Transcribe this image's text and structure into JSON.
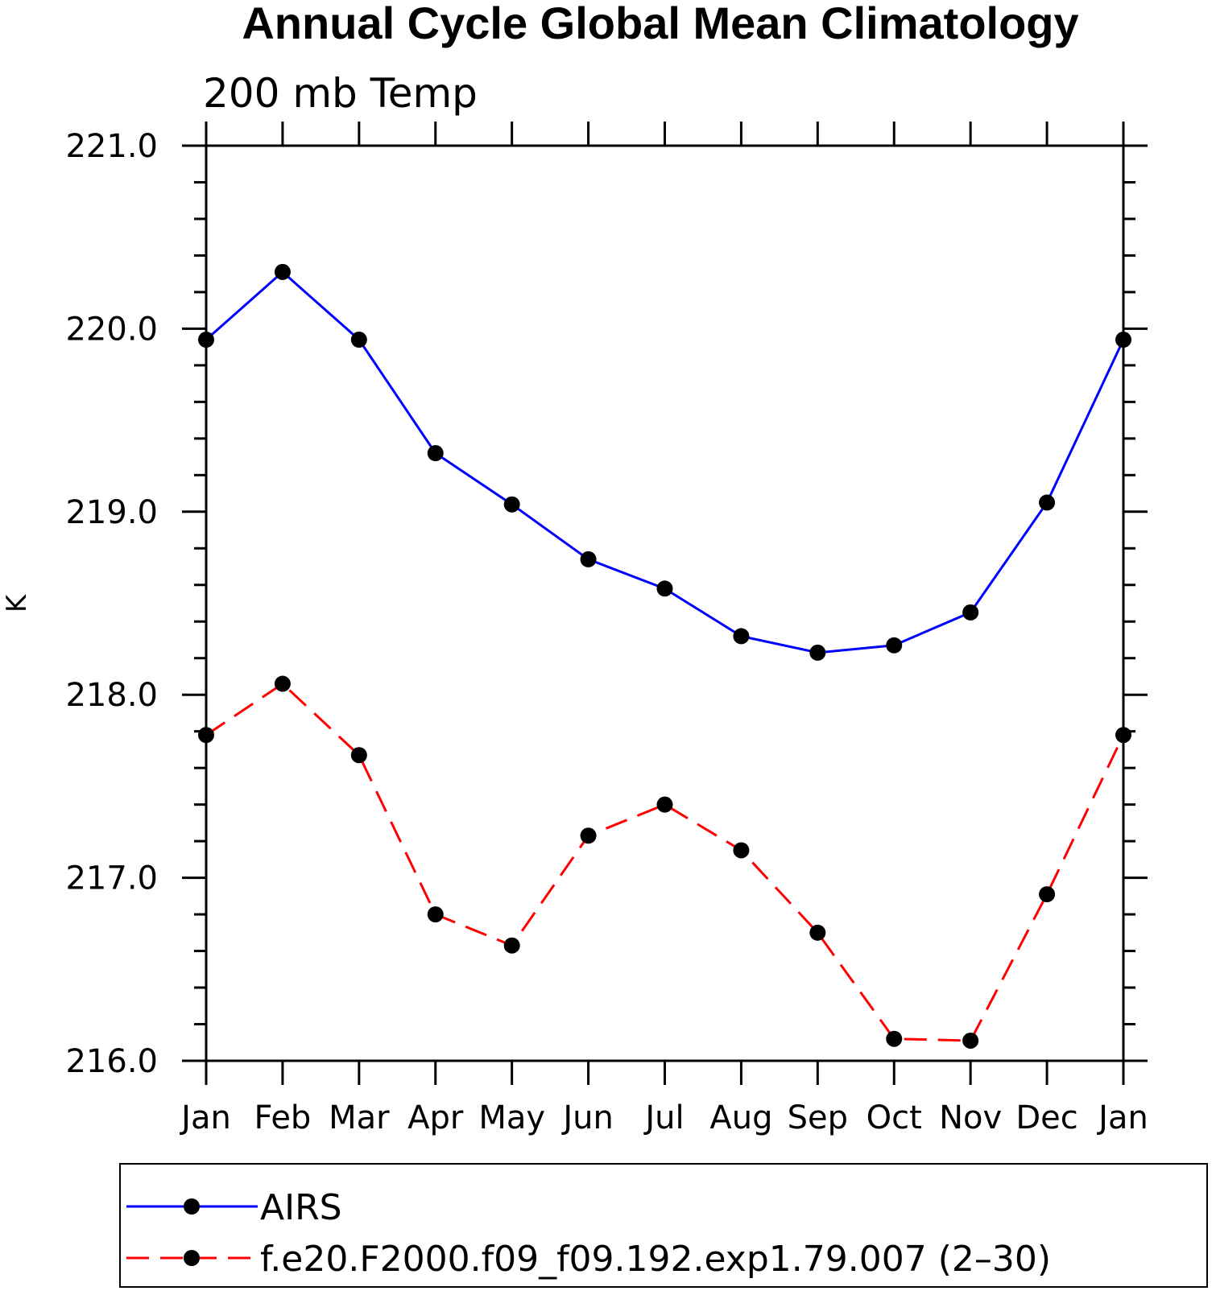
{
  "chart_data": {
    "type": "line",
    "title": "Annual Cycle Global Mean Climatology",
    "subtitle": "200 mb Temp",
    "xlabel": "",
    "ylabel": "K",
    "categories": [
      "Jan",
      "Feb",
      "Mar",
      "Apr",
      "May",
      "Jun",
      "Jul",
      "Aug",
      "Sep",
      "Oct",
      "Nov",
      "Dec",
      "Jan"
    ],
    "yticks": [
      "216.0",
      "217.0",
      "218.0",
      "219.0",
      "220.0",
      "221.0"
    ],
    "ylim": [
      216.0,
      221.0
    ],
    "grid": false,
    "legend_position": "bottom",
    "series": [
      {
        "name": "AIRS",
        "color": "#0000ff",
        "dash": "solid",
        "marker": "circle",
        "values": [
          219.94,
          220.31,
          219.94,
          219.32,
          219.04,
          218.74,
          218.58,
          218.32,
          218.23,
          218.27,
          218.45,
          219.05,
          219.94
        ]
      },
      {
        "name": "f.e20.F2000.f09_f09.192.exp1.79.007 (2–30)",
        "color": "#ff0000",
        "dash": "dashed",
        "marker": "circle",
        "values": [
          217.78,
          218.06,
          217.67,
          216.8,
          216.63,
          217.23,
          217.4,
          217.15,
          216.7,
          216.12,
          216.11,
          216.91,
          217.78
        ]
      }
    ]
  }
}
